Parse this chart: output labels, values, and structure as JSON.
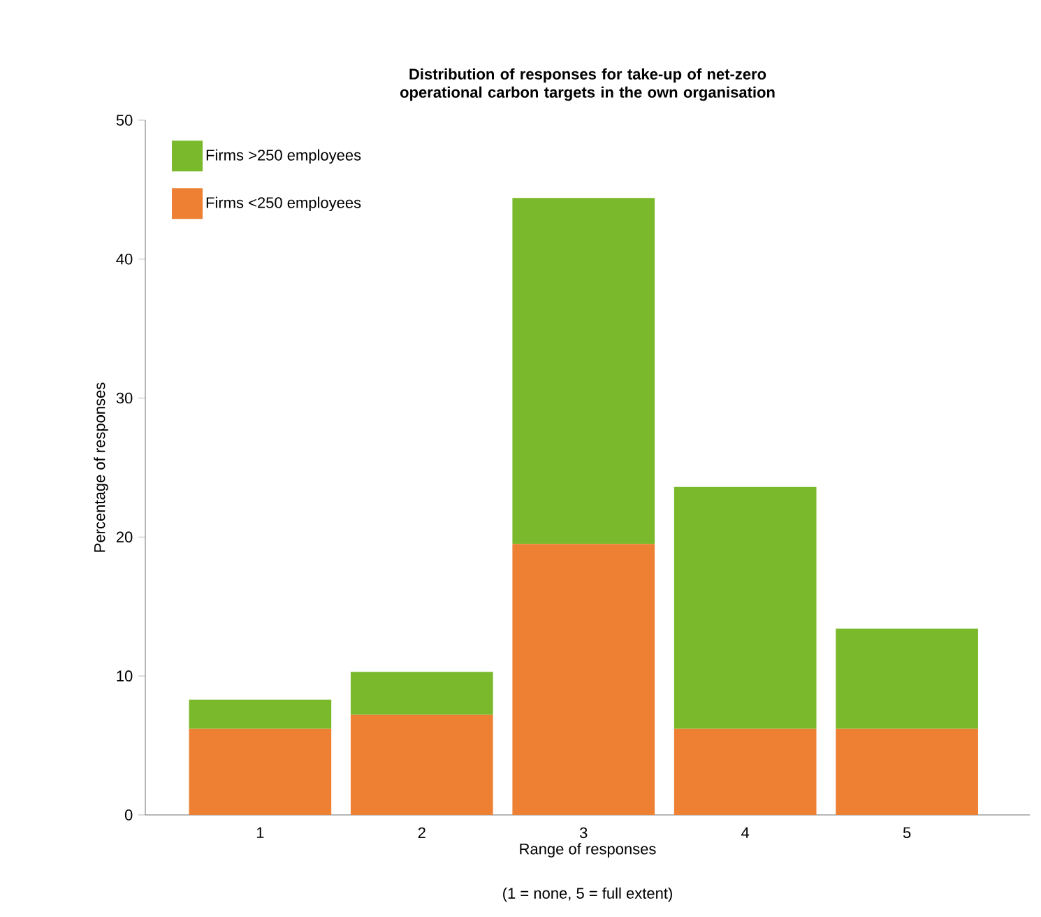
{
  "chart_data": {
    "type": "bar",
    "stacked": true,
    "title": "Distribution of responses for take-up of net-zero operational carbon targets in the own organisation",
    "xlabel": "Range of responses",
    "ylabel": "Percentage of responses",
    "annotations": [
      "(1 = none, 5 = full extent)"
    ],
    "categories": [
      "1",
      "2",
      "3",
      "4",
      "5"
    ],
    "series": [
      {
        "name": "Firms <250 employees",
        "color": "#ee8034",
        "values": [
          6.2,
          7.2,
          19.5,
          6.2,
          6.2
        ]
      },
      {
        "name": "Firms >250 employees",
        "color": "#7ab92b",
        "values": [
          2.1,
          3.1,
          24.9,
          17.4,
          7.2
        ]
      }
    ],
    "ylim": [
      0,
      50
    ],
    "yticks": [
      0,
      10,
      20,
      30,
      40,
      50
    ],
    "legend": "top left",
    "grid": false
  }
}
